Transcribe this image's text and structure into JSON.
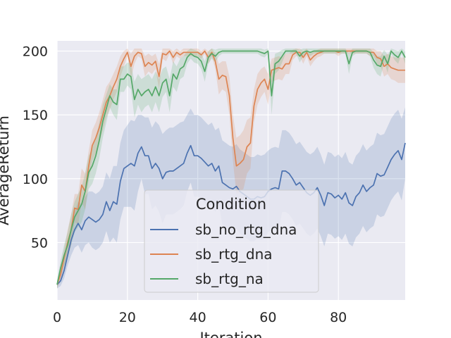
{
  "chart_data": {
    "type": "line",
    "title": "",
    "xlabel": "Iteration",
    "ylabel": "AverageReturn",
    "xlim": [
      0,
      99
    ],
    "ylim": [
      5,
      208
    ],
    "xticks": [
      0,
      20,
      40,
      60,
      80
    ],
    "yticks": [
      50,
      100,
      150,
      200
    ],
    "grid": true,
    "legend": {
      "title": "Condition",
      "placement": "lower-center"
    },
    "series": [
      {
        "name": "sb_no_rtg_dna",
        "color": "#4c72b0",
        "x_step": 1,
        "mean": [
          17,
          20,
          28,
          40,
          52,
          60,
          65,
          60,
          67,
          70,
          68,
          66,
          68,
          72,
          82,
          75,
          82,
          80,
          98,
          108,
          110,
          112,
          110,
          120,
          125,
          118,
          118,
          108,
          112,
          108,
          100,
          105,
          106,
          106,
          108,
          110,
          112,
          120,
          126,
          118,
          118,
          116,
          113,
          110,
          112,
          106,
          110,
          97,
          95,
          93,
          92,
          94,
          90,
          88,
          86,
          84,
          84,
          86,
          85,
          86,
          90,
          92,
          93,
          92,
          106,
          106,
          104,
          100,
          95,
          97,
          93,
          89,
          87,
          89,
          93,
          87,
          79,
          89,
          88,
          85,
          87,
          84,
          89,
          81,
          79,
          86,
          89,
          95,
          90,
          93,
          95,
          104,
          102,
          103,
          109,
          115,
          119,
          122,
          115,
          128
        ],
        "upper": [
          20,
          24,
          34,
          48,
          64,
          74,
          82,
          80,
          86,
          90,
          90,
          88,
          90,
          94,
          105,
          100,
          110,
          110,
          128,
          138,
          142,
          146,
          145,
          150,
          150,
          148,
          148,
          140,
          145,
          142,
          135,
          138,
          140,
          140,
          142,
          144,
          145,
          150,
          155,
          150,
          150,
          148,
          145,
          142,
          144,
          138,
          140,
          130,
          128,
          126,
          125,
          127,
          123,
          121,
          119,
          117,
          117,
          119,
          118,
          119,
          122,
          124,
          125,
          124,
          138,
          138,
          136,
          132,
          127,
          129,
          125,
          121,
          119,
          121,
          125,
          119,
          111,
          121,
          120,
          117,
          119,
          116,
          121,
          113,
          111,
          118,
          121,
          127,
          122,
          125,
          127,
          136,
          134,
          135,
          141,
          147,
          151,
          154,
          147,
          156
        ],
        "lower": [
          14,
          16,
          22,
          32,
          40,
          46,
          48,
          42,
          48,
          50,
          46,
          44,
          46,
          50,
          59,
          50,
          54,
          50,
          68,
          78,
          78,
          78,
          75,
          90,
          100,
          88,
          88,
          76,
          79,
          74,
          65,
          72,
          72,
          72,
          74,
          76,
          79,
          90,
          97,
          86,
          86,
          84,
          81,
          78,
          80,
          74,
          80,
          64,
          62,
          60,
          59,
          61,
          57,
          55,
          53,
          51,
          51,
          53,
          52,
          53,
          58,
          60,
          61,
          60,
          74,
          74,
          72,
          68,
          63,
          65,
          61,
          57,
          55,
          57,
          61,
          55,
          47,
          57,
          56,
          53,
          55,
          52,
          57,
          49,
          47,
          54,
          57,
          63,
          58,
          61,
          63,
          72,
          70,
          71,
          77,
          83,
          87,
          90,
          83,
          100
        ]
      },
      {
        "name": "sb_rtg_dna",
        "color": "#dd8452",
        "x_step": 1,
        "mean": [
          17,
          25,
          38,
          50,
          60,
          77,
          76,
          95,
          90,
          110,
          126,
          132,
          140,
          150,
          160,
          165,
          172,
          178,
          188,
          194,
          199,
          188,
          196,
          199,
          198,
          188,
          191,
          189,
          192,
          180,
          198,
          197,
          200,
          195,
          199,
          197,
          199,
          199,
          199,
          199,
          199,
          197,
          200,
          195,
          199,
          192,
          178,
          181,
          180,
          165,
          132,
          110,
          112,
          115,
          125,
          128,
          157,
          170,
          175,
          178,
          170,
          185,
          186,
          187,
          186,
          190,
          190,
          197,
          199,
          199,
          195,
          199,
          193,
          196,
          198,
          199,
          200,
          200,
          200,
          200,
          199,
          200,
          200,
          200,
          200,
          200,
          200,
          200,
          200,
          199,
          199,
          195,
          194,
          188,
          190,
          187,
          186,
          185,
          185,
          185
        ],
        "upper": [
          20,
          30,
          45,
          60,
          72,
          88,
          88,
          108,
          104,
          122,
          138,
          144,
          152,
          162,
          172,
          176,
          182,
          188,
          196,
          200,
          202,
          198,
          202,
          202,
          202,
          196,
          198,
          196,
          198,
          190,
          202,
          202,
          202,
          200,
          202,
          200,
          202,
          202,
          202,
          202,
          202,
          200,
          202,
          200,
          202,
          198,
          190,
          192,
          192,
          180,
          150,
          132,
          134,
          138,
          146,
          148,
          170,
          182,
          186,
          188,
          182,
          194,
          195,
          196,
          195,
          198,
          198,
          201,
          202,
          202,
          200,
          202,
          198,
          200,
          201,
          202,
          202,
          202,
          202,
          202,
          202,
          202,
          202,
          202,
          202,
          202,
          202,
          202,
          202,
          202,
          202,
          200,
          200,
          196,
          198,
          196,
          195,
          195,
          195,
          195
        ],
        "lower": [
          14,
          20,
          31,
          40,
          48,
          66,
          64,
          82,
          76,
          98,
          114,
          120,
          128,
          138,
          148,
          154,
          162,
          168,
          180,
          188,
          196,
          178,
          190,
          196,
          194,
          180,
          184,
          182,
          186,
          170,
          194,
          192,
          198,
          190,
          196,
          194,
          196,
          196,
          196,
          196,
          196,
          194,
          198,
          190,
          196,
          186,
          166,
          170,
          168,
          150,
          114,
          88,
          90,
          92,
          104,
          108,
          144,
          158,
          164,
          168,
          158,
          176,
          177,
          178,
          177,
          182,
          182,
          193,
          196,
          196,
          190,
          196,
          188,
          192,
          195,
          196,
          198,
          198,
          198,
          198,
          196,
          198,
          198,
          198,
          198,
          198,
          198,
          198,
          198,
          196,
          196,
          190,
          188,
          180,
          182,
          178,
          177,
          175,
          175,
          175
        ]
      },
      {
        "name": "sb_rtg_na",
        "color": "#55a868",
        "x_step": 1,
        "mean": [
          17,
          30,
          40,
          48,
          60,
          70,
          75,
          80,
          90,
          105,
          110,
          118,
          130,
          145,
          155,
          165,
          160,
          158,
          178,
          178,
          182,
          180,
          162,
          170,
          165,
          168,
          170,
          165,
          172,
          165,
          175,
          178,
          165,
          182,
          178,
          186,
          188,
          195,
          198,
          196,
          195,
          192,
          184,
          195,
          198,
          196,
          199,
          200,
          200,
          200,
          200,
          200,
          200,
          200,
          200,
          200,
          200,
          200,
          199,
          198,
          200,
          165,
          190,
          192,
          196,
          200,
          200,
          200,
          200,
          196,
          199,
          200,
          199,
          200,
          200,
          200,
          200,
          200,
          200,
          200,
          200,
          200,
          200,
          190,
          199,
          200,
          200,
          200,
          200,
          199,
          193,
          189,
          188,
          196,
          190,
          200,
          197,
          195,
          200,
          195
        ],
        "upper": [
          20,
          36,
          48,
          58,
          72,
          82,
          88,
          94,
          104,
          118,
          124,
          132,
          144,
          158,
          166,
          174,
          170,
          170,
          188,
          188,
          191,
          190,
          176,
          182,
          178,
          180,
          182,
          178,
          184,
          178,
          186,
          188,
          178,
          192,
          188,
          194,
          196,
          200,
          202,
          201,
          200,
          198,
          192,
          200,
          202,
          201,
          202,
          202,
          202,
          202,
          202,
          202,
          202,
          202,
          202,
          202,
          202,
          202,
          202,
          201,
          202,
          180,
          198,
          199,
          201,
          202,
          202,
          202,
          202,
          201,
          202,
          202,
          202,
          202,
          202,
          202,
          202,
          202,
          202,
          202,
          202,
          202,
          202,
          198,
          202,
          202,
          202,
          202,
          202,
          202,
          199,
          196,
          196,
          201,
          197,
          202,
          201,
          200,
          202,
          200
        ],
        "lower": [
          14,
          24,
          32,
          38,
          48,
          58,
          62,
          66,
          76,
          92,
          96,
          104,
          116,
          132,
          144,
          156,
          150,
          146,
          168,
          168,
          173,
          170,
          148,
          158,
          152,
          156,
          158,
          152,
          160,
          152,
          164,
          168,
          152,
          172,
          168,
          178,
          180,
          190,
          194,
          191,
          190,
          186,
          176,
          190,
          194,
          191,
          196,
          198,
          198,
          198,
          198,
          198,
          198,
          198,
          198,
          198,
          198,
          198,
          196,
          195,
          198,
          150,
          182,
          185,
          191,
          198,
          198,
          198,
          198,
          191,
          196,
          198,
          196,
          198,
          198,
          198,
          198,
          198,
          198,
          198,
          198,
          198,
          198,
          182,
          196,
          198,
          198,
          198,
          198,
          196,
          187,
          182,
          180,
          191,
          183,
          198,
          193,
          190,
          198,
          190
        ]
      }
    ]
  }
}
